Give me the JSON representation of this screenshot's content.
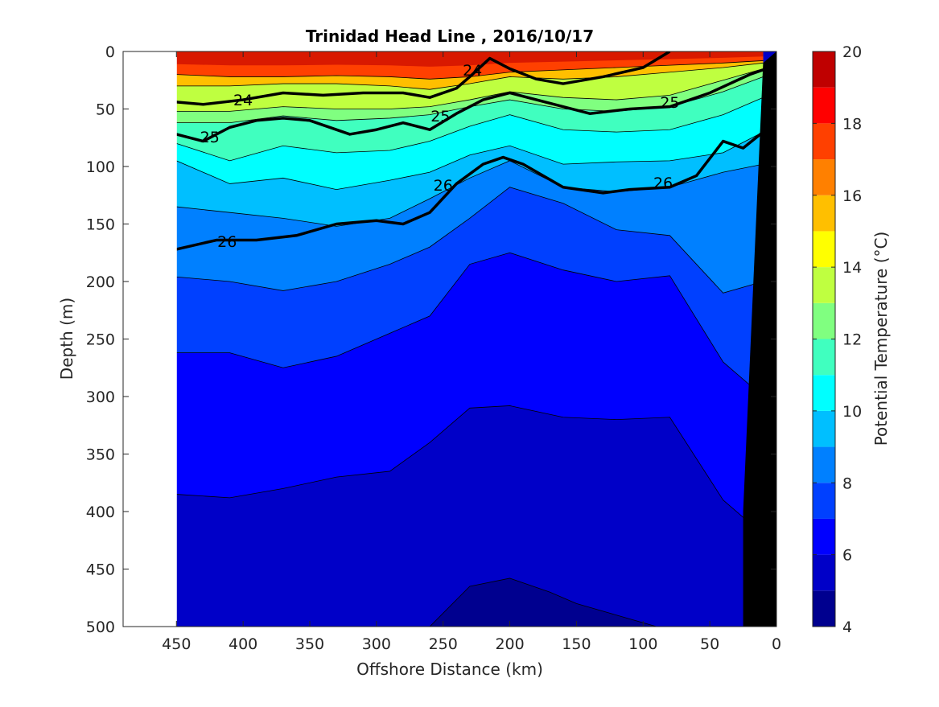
{
  "chart_data": {
    "type": "heatmap",
    "subtype": "filled-contour-section",
    "title": "Trinidad Head Line , 2016/10/17",
    "xlabel": "Offshore Distance (km)",
    "ylabel": "Depth (m)",
    "colorbar_label": "Potential Temperature (°C)",
    "xlim": [
      490,
      0
    ],
    "ylim": [
      500,
      0
    ],
    "x_direction": "reversed",
    "y_direction": "depth increases downward",
    "x_ticks": [
      450,
      400,
      350,
      300,
      250,
      200,
      150,
      100,
      50,
      0
    ],
    "y_ticks": [
      0,
      50,
      100,
      150,
      200,
      250,
      300,
      350,
      400,
      450,
      500
    ],
    "colorbar": {
      "range": [
        4,
        20
      ],
      "ticks": [
        4,
        6,
        8,
        10,
        12,
        14,
        16,
        18,
        20
      ],
      "levels": [
        4,
        5,
        6,
        7,
        8,
        9,
        10,
        11,
        12,
        13,
        14,
        15,
        16,
        17,
        18,
        19,
        20
      ],
      "colors": [
        "#00008f",
        "#0000c8",
        "#0000ff",
        "#0040ff",
        "#0080ff",
        "#00bfff",
        "#00ffff",
        "#40ffbf",
        "#80ff80",
        "#bfff40",
        "#ffff00",
        "#ffbf00",
        "#ff8000",
        "#ff4000",
        "#ff0000",
        "#bf0000"
      ]
    },
    "isotherms_deg_c": [
      {
        "temp": 17,
        "x": [
          450,
          410,
          370,
          330,
          290,
          260,
          230,
          200,
          160,
          120,
          80,
          40,
          10
        ],
        "depth": [
          20,
          22,
          22,
          21,
          22,
          24,
          22,
          18,
          16,
          14,
          12,
          10,
          8
        ]
      },
      {
        "temp": 15,
        "x": [
          450,
          410,
          370,
          330,
          290,
          260,
          230,
          200,
          160,
          120,
          80,
          40,
          10
        ],
        "depth": [
          30,
          30,
          28,
          28,
          30,
          33,
          28,
          22,
          24,
          22,
          18,
          14,
          10
        ]
      },
      {
        "temp": 13,
        "x": [
          450,
          410,
          370,
          330,
          290,
          260,
          230,
          200,
          160,
          120,
          80,
          40,
          10
        ],
        "depth": [
          52,
          52,
          48,
          50,
          50,
          48,
          42,
          35,
          40,
          42,
          38,
          25,
          15
        ]
      },
      {
        "temp": 12,
        "x": [
          450,
          410,
          370,
          330,
          290,
          260,
          230,
          200,
          160,
          120,
          80,
          40,
          10
        ],
        "depth": [
          62,
          62,
          56,
          60,
          58,
          55,
          48,
          42,
          50,
          52,
          48,
          35,
          22
        ]
      },
      {
        "temp": 11,
        "x": [
          450,
          410,
          370,
          330,
          290,
          260,
          230,
          200,
          160,
          120,
          80,
          40,
          10
        ],
        "depth": [
          80,
          95,
          82,
          88,
          86,
          78,
          65,
          55,
          68,
          70,
          68,
          55,
          40
        ]
      },
      {
        "temp": 10,
        "x": [
          450,
          410,
          370,
          330,
          290,
          260,
          230,
          200,
          160,
          120,
          80,
          40,
          10
        ],
        "depth": [
          95,
          115,
          110,
          120,
          112,
          105,
          90,
          82,
          98,
          96,
          95,
          88,
          70
        ]
      },
      {
        "temp": 9,
        "x": [
          450,
          410,
          370,
          330,
          290,
          260,
          230,
          200,
          160,
          120,
          80,
          40,
          10
        ],
        "depth": [
          135,
          140,
          145,
          152,
          145,
          128,
          110,
          95,
          118,
          122,
          118,
          105,
          98
        ]
      },
      {
        "temp": 8,
        "x": [
          450,
          410,
          370,
          330,
          290,
          260,
          230,
          200,
          160,
          120,
          80,
          40,
          10
        ],
        "depth": [
          196,
          200,
          208,
          200,
          185,
          170,
          145,
          118,
          132,
          155,
          160,
          210,
          200
        ]
      },
      {
        "temp": 7,
        "x": [
          450,
          410,
          370,
          330,
          290,
          260,
          230,
          200,
          160,
          120,
          80,
          40,
          10
        ],
        "depth": [
          262,
          262,
          275,
          265,
          245,
          230,
          185,
          175,
          190,
          200,
          195,
          270,
          300
        ]
      },
      {
        "temp": 6,
        "x": [
          450,
          410,
          370,
          330,
          290,
          260,
          230,
          200,
          160,
          120,
          80,
          40,
          10
        ],
        "depth": [
          385,
          388,
          380,
          370,
          365,
          340,
          310,
          308,
          318,
          320,
          318,
          390,
          420
        ]
      },
      {
        "temp": 5,
        "x": [
          260,
          230,
          200,
          170,
          150,
          120,
          90
        ],
        "depth": [
          500,
          465,
          458,
          470,
          480,
          490,
          500
        ]
      }
    ],
    "isopycnals_sigma_theta": [
      {
        "label": "24",
        "x": [
          450,
          430,
          400,
          370,
          340,
          310,
          280,
          260,
          240,
          230,
          215,
          200,
          180,
          160,
          130,
          100,
          80
        ],
        "depth": [
          44,
          46,
          42,
          36,
          38,
          36,
          36,
          40,
          32,
          22,
          6,
          15,
          24,
          28,
          22,
          14,
          0
        ]
      },
      {
        "label": "25",
        "x": [
          450,
          430,
          410,
          390,
          370,
          350,
          320,
          300,
          280,
          260,
          240,
          220,
          200,
          170,
          140,
          110,
          80,
          50,
          20,
          10
        ],
        "depth": [
          72,
          78,
          66,
          60,
          58,
          60,
          72,
          68,
          62,
          68,
          54,
          42,
          36,
          45,
          54,
          50,
          48,
          36,
          20,
          16
        ]
      },
      {
        "label": "26",
        "x": [
          450,
          420,
          390,
          360,
          330,
          300,
          280,
          260,
          240,
          220,
          205,
          190,
          160,
          130,
          110,
          80,
          60,
          40,
          25,
          10
        ],
        "depth": [
          172,
          164,
          164,
          160,
          150,
          147,
          150,
          140,
          115,
          98,
          92,
          98,
          118,
          123,
          120,
          118,
          108,
          78,
          84,
          70
        ]
      }
    ],
    "isopycnal_labels": [
      {
        "text": "24",
        "x": 400,
        "depth": 42
      },
      {
        "text": "24",
        "x": 228,
        "depth": 16
      },
      {
        "text": "25",
        "x": 425,
        "depth": 74
      },
      {
        "text": "25",
        "x": 252,
        "depth": 56
      },
      {
        "text": "25",
        "x": 80,
        "depth": 44
      },
      {
        "text": "26",
        "x": 412,
        "depth": 165
      },
      {
        "text": "26",
        "x": 250,
        "depth": 116
      },
      {
        "text": "26",
        "x": 85,
        "depth": 114
      }
    ],
    "bottom_topography": {
      "x": [
        0,
        10,
        25,
        25,
        0
      ],
      "depth": [
        0,
        10,
        400,
        500,
        500
      ],
      "color": "#000000"
    },
    "no_data_region_offshore": {
      "x": [
        490,
        450
      ],
      "depth_range": [
        0,
        500
      ]
    }
  }
}
